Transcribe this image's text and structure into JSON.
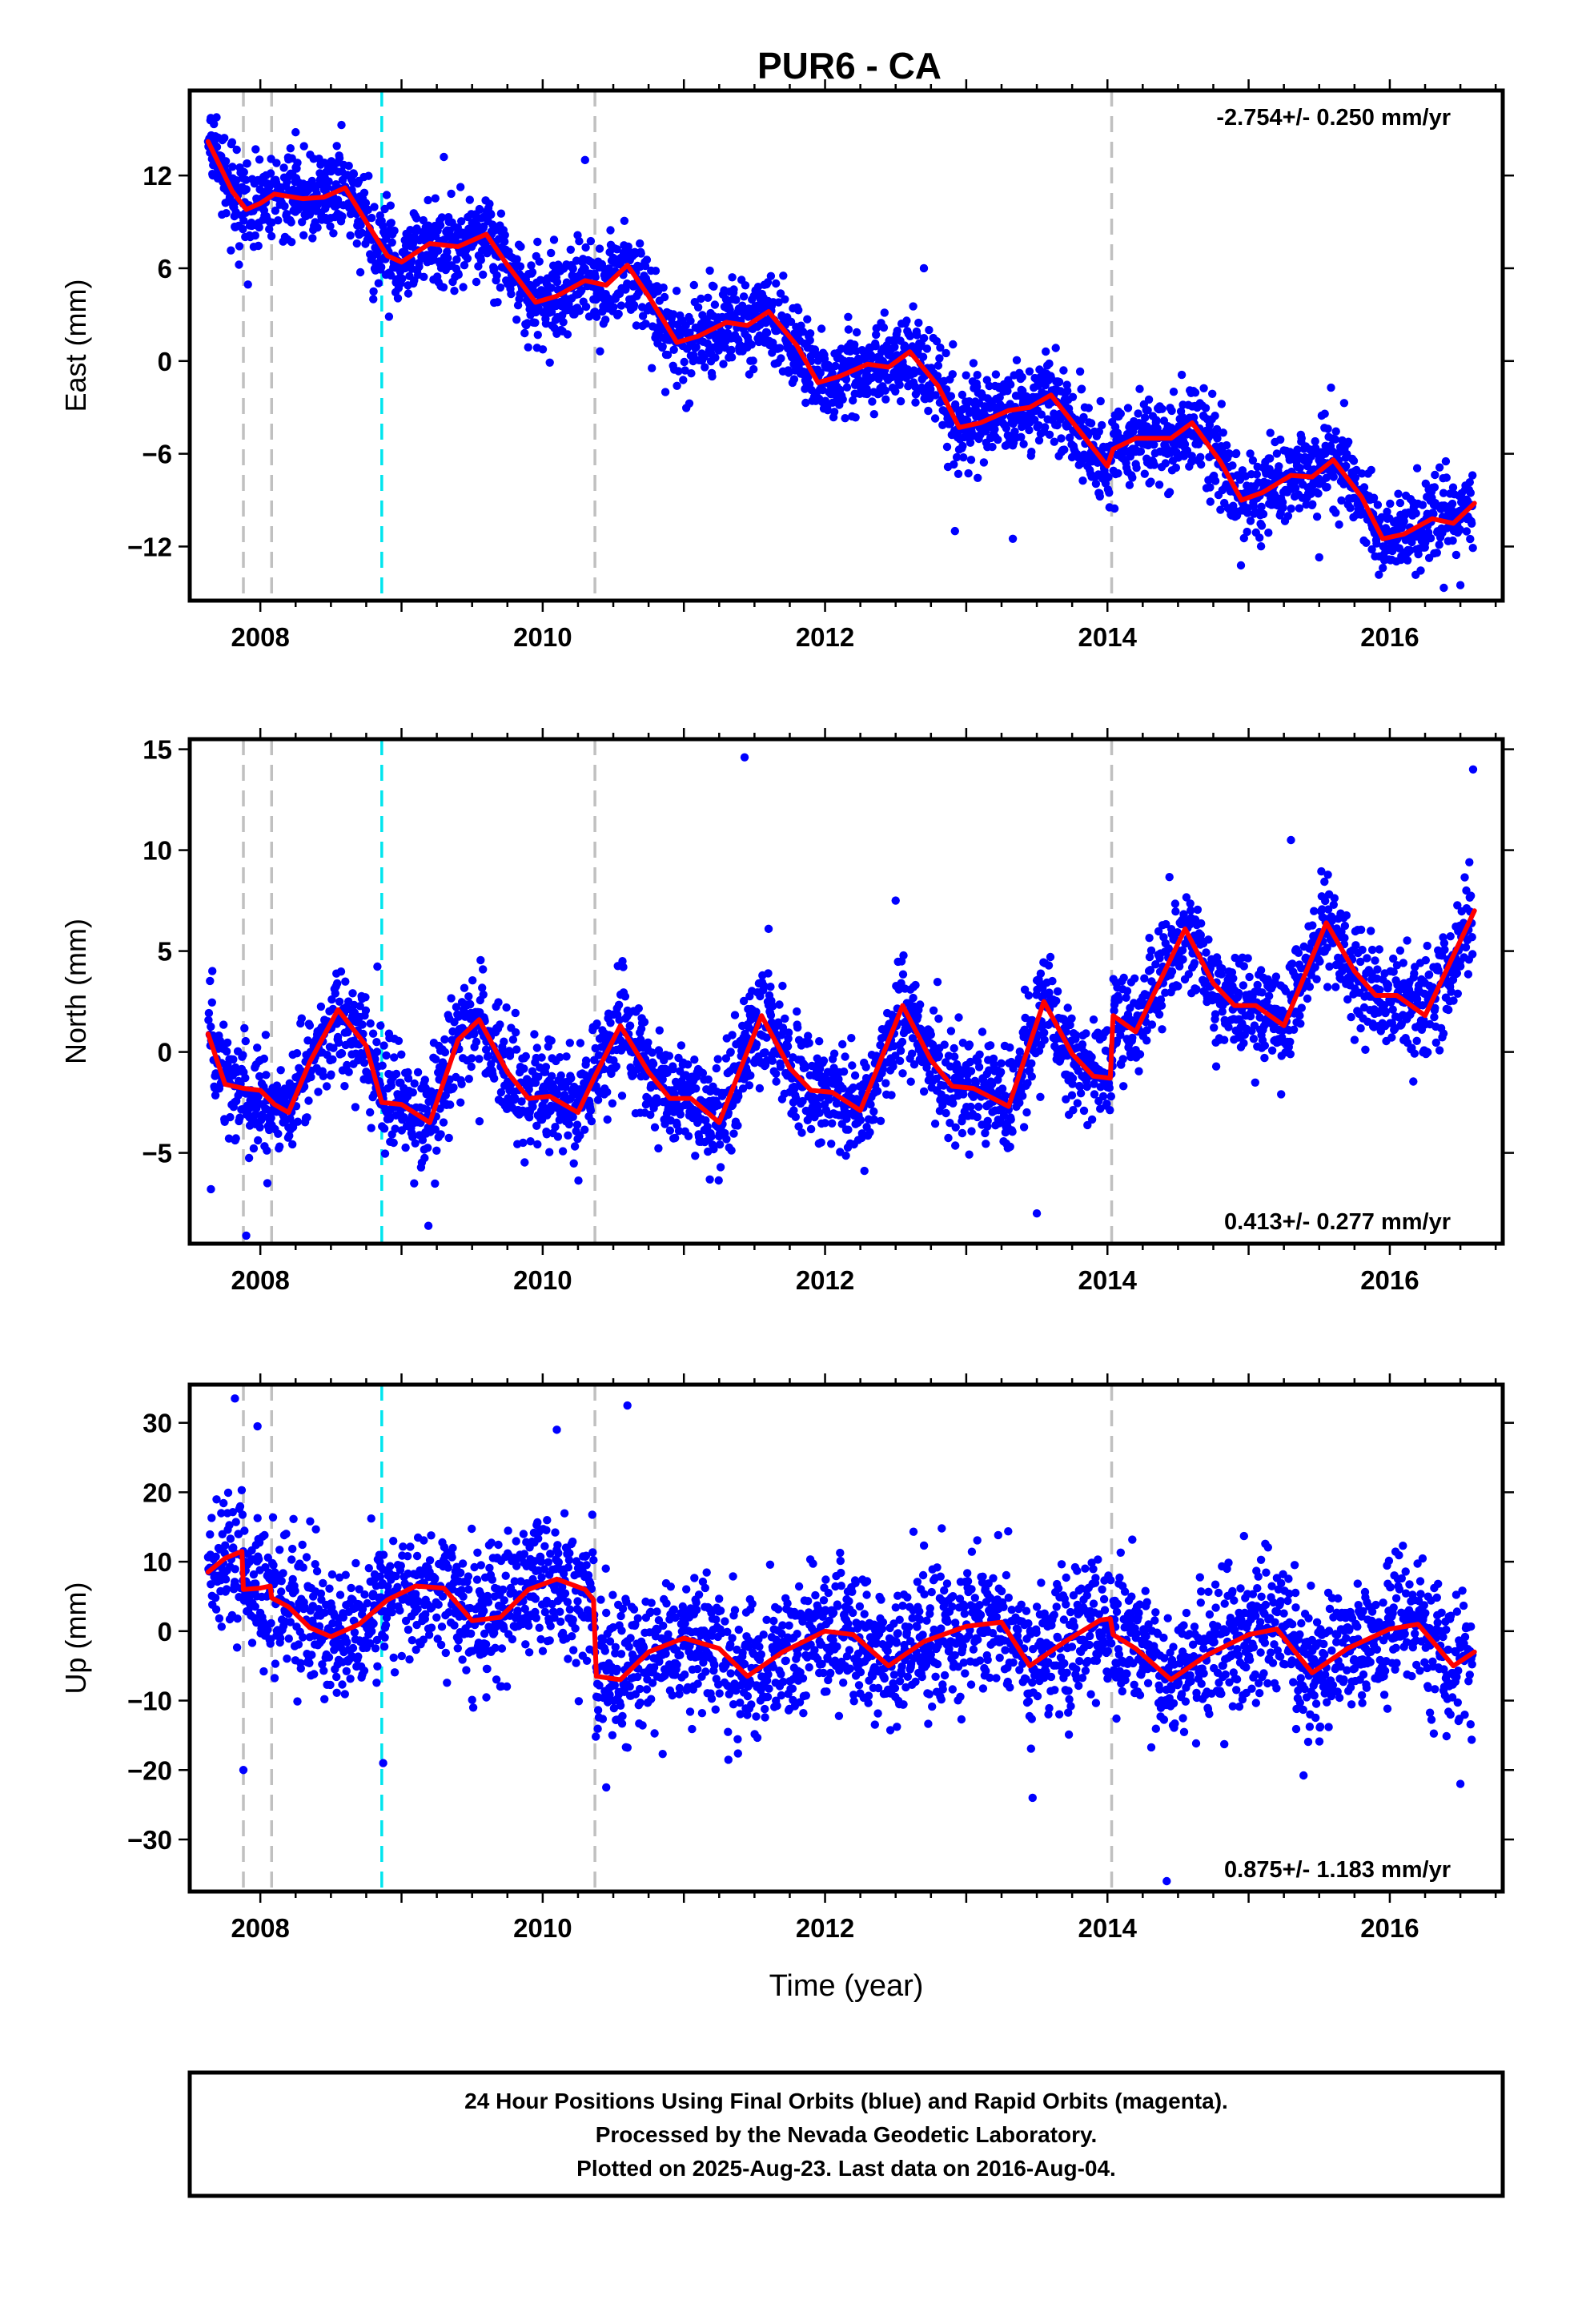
{
  "title": "PUR6 - CA",
  "footer": {
    "lines": [
      "24 Hour Positions Using Final Orbits (blue) and Rapid Orbits (magenta).",
      "Processed by the Nevada Geodetic Laboratory.",
      "Plotted on 2025-Aug-23. Last data on 2016-Aug-04."
    ]
  },
  "colors": {
    "points": "#0000ff",
    "model": "#ff0000",
    "event_line": "#c0c0c0",
    "equipment_line": "#00e5ee"
  },
  "chart_data": [
    {
      "type": "scatter",
      "ylabel": "East (mm)",
      "xlabel": "",
      "xlim": [
        2007.5,
        2016.8
      ],
      "ylim": [
        -15.5,
        17.5
      ],
      "x_ticks": [
        2008,
        2010,
        2012,
        2014,
        2016
      ],
      "y_ticks": [
        12,
        6,
        0,
        -6,
        -12
      ],
      "rate_text": "-2.754+/- 0.250 mm/yr",
      "rate_position": "top-right",
      "event_lines_gray": [
        2007.88,
        2008.08,
        2010.37,
        2014.03
      ],
      "event_lines_cyan": [
        2008.86
      ],
      "model": {
        "x": [
          2007.63,
          2007.8,
          2007.9,
          2008.0,
          2008.1,
          2008.3,
          2008.45,
          2008.6,
          2008.75,
          2008.9,
          2009.0,
          2009.2,
          2009.4,
          2009.6,
          2009.75,
          2009.95,
          2010.1,
          2010.3,
          2010.45,
          2010.6,
          2010.75,
          2010.95,
          2011.1,
          2011.3,
          2011.45,
          2011.6,
          2011.8,
          2011.95,
          2012.1,
          2012.3,
          2012.45,
          2012.6,
          2012.8,
          2012.95,
          2013.1,
          2013.3,
          2013.45,
          2013.6,
          2013.8,
          2014.0,
          2014.04,
          2014.2,
          2014.45,
          2014.6,
          2014.8,
          2014.95,
          2015.1,
          2015.3,
          2015.45,
          2015.6,
          2015.8,
          2015.95,
          2016.1,
          2016.3,
          2016.45,
          2016.6
        ],
        "y": [
          14.2,
          11.0,
          9.8,
          10.2,
          10.8,
          10.5,
          10.6,
          11.2,
          9.0,
          6.8,
          6.4,
          7.6,
          7.4,
          8.2,
          6.2,
          3.8,
          4.2,
          5.2,
          4.9,
          6.2,
          4.2,
          1.2,
          1.6,
          2.5,
          2.3,
          3.2,
          1.0,
          -1.4,
          -1.0,
          -0.2,
          -0.4,
          0.6,
          -1.6,
          -4.3,
          -4.0,
          -3.2,
          -3.0,
          -2.2,
          -4.5,
          -6.8,
          -5.7,
          -5.0,
          -5.0,
          -4.0,
          -6.5,
          -9.0,
          -8.5,
          -7.4,
          -7.5,
          -6.4,
          -8.8,
          -11.5,
          -11.2,
          -10.2,
          -10.5,
          -9.2
        ]
      },
      "points_summary": {
        "start": 2007.63,
        "end": 2016.59,
        "spacing_days": 1,
        "scatter_mm": 1.4,
        "outliers": [
          {
            "x": 2009.3,
            "y": 13.2
          },
          {
            "x": 2010.3,
            "y": 13.0
          },
          {
            "x": 2012.7,
            "y": 6.0
          },
          {
            "x": 2012.92,
            "y": -11.0
          },
          {
            "x": 2013.33,
            "y": -11.5
          },
          {
            "x": 2015.5,
            "y": -12.7
          },
          {
            "x": 2016.5,
            "y": -14.5
          },
          {
            "x": 2008.25,
            "y": 14.8
          },
          {
            "x": 2008.8,
            "y": 4.0
          }
        ]
      }
    },
    {
      "type": "scatter",
      "ylabel": "North (mm)",
      "xlabel": "",
      "xlim": [
        2007.5,
        2016.8
      ],
      "ylim": [
        -9.5,
        15.5
      ],
      "x_ticks": [
        2008,
        2010,
        2012,
        2014,
        2016
      ],
      "y_ticks": [
        15,
        10,
        5,
        0,
        -5
      ],
      "rate_text": "0.413+/- 0.277 mm/yr",
      "rate_position": "bottom-right",
      "event_lines_gray": [
        2007.88,
        2008.08,
        2010.37,
        2014.03
      ],
      "event_lines_cyan": [
        2008.86
      ],
      "model": {
        "x": [
          2007.63,
          2007.75,
          2007.88,
          2008.0,
          2008.1,
          2008.2,
          2008.35,
          2008.55,
          2008.75,
          2008.86,
          2009.0,
          2009.2,
          2009.4,
          2009.55,
          2009.75,
          2009.9,
          2010.05,
          2010.25,
          2010.37,
          2010.55,
          2010.75,
          2010.9,
          2011.05,
          2011.25,
          2011.55,
          2011.75,
          2011.9,
          2012.05,
          2012.25,
          2012.55,
          2012.75,
          2012.9,
          2013.05,
          2013.3,
          2013.55,
          2013.75,
          2013.9,
          2014.02,
          2014.04,
          2014.2,
          2014.55,
          2014.75,
          2014.9,
          2015.05,
          2015.25,
          2015.55,
          2015.75,
          2015.9,
          2016.05,
          2016.25,
          2016.6
        ],
        "y": [
          0.9,
          -1.6,
          -1.8,
          -1.9,
          -2.6,
          -3.0,
          -0.5,
          2.1,
          0.3,
          -2.5,
          -2.6,
          -3.5,
          0.6,
          1.6,
          -1.0,
          -2.3,
          -2.2,
          -3.0,
          -1.2,
          1.3,
          -1.0,
          -2.3,
          -2.3,
          -3.5,
          1.8,
          -0.8,
          -1.9,
          -2.0,
          -2.9,
          2.3,
          -0.4,
          -1.7,
          -1.8,
          -2.7,
          2.5,
          -0.1,
          -1.2,
          -1.3,
          1.8,
          1.0,
          6.1,
          3.4,
          2.3,
          2.3,
          1.3,
          6.4,
          4.0,
          2.8,
          2.8,
          1.8,
          7.0
        ]
      },
      "points_summary": {
        "start": 2007.63,
        "end": 2016.59,
        "spacing_days": 1,
        "scatter_mm": 1.3,
        "outliers": [
          {
            "x": 2011.43,
            "y": 14.6
          },
          {
            "x": 2016.59,
            "y": 14.0
          },
          {
            "x": 2007.9,
            "y": -9.1
          },
          {
            "x": 2013.5,
            "y": -8.0
          },
          {
            "x": 2011.6,
            "y": 6.1
          },
          {
            "x": 2012.5,
            "y": 7.5
          },
          {
            "x": 2015.3,
            "y": 10.5
          },
          {
            "x": 2007.65,
            "y": -6.8
          },
          {
            "x": 2008.05,
            "y": -6.5
          }
        ]
      }
    },
    {
      "type": "scatter",
      "ylabel": "Up (mm)",
      "xlabel": "Time (year)",
      "xlim": [
        2007.5,
        2016.8
      ],
      "ylim": [
        -37.5,
        35.5
      ],
      "x_ticks": [
        2008,
        2010,
        2012,
        2014,
        2016
      ],
      "y_ticks": [
        30,
        20,
        10,
        0,
        -10,
        -20,
        -30
      ],
      "rate_text": "0.875+/- 1.183 mm/yr",
      "rate_position": "bottom-right",
      "event_lines_gray": [
        2007.88,
        2008.08,
        2010.37,
        2014.03
      ],
      "event_lines_cyan": [
        2008.86
      ],
      "model": {
        "x": [
          2007.63,
          2007.75,
          2007.87,
          2007.88,
          2008.0,
          2008.07,
          2008.08,
          2008.2,
          2008.35,
          2008.5,
          2008.7,
          2008.9,
          2009.1,
          2009.3,
          2009.5,
          2009.7,
          2009.9,
          2010.1,
          2010.3,
          2010.36,
          2010.38,
          2010.55,
          2010.75,
          2011.0,
          2011.25,
          2011.45,
          2011.7,
          2012.0,
          2012.2,
          2012.45,
          2012.7,
          2013.0,
          2013.25,
          2013.45,
          2013.7,
          2013.95,
          2014.02,
          2014.04,
          2014.2,
          2014.45,
          2014.7,
          2015.0,
          2015.2,
          2015.45,
          2015.7,
          2016.0,
          2016.2,
          2016.45,
          2016.6
        ],
        "y": [
          8.5,
          10.5,
          11.5,
          6.0,
          6.2,
          6.5,
          4.8,
          3.5,
          0.5,
          -0.8,
          1.0,
          4.5,
          6.5,
          6.2,
          1.5,
          2.0,
          6.0,
          7.5,
          6.0,
          4.5,
          -6.5,
          -7.0,
          -3.0,
          -1.0,
          -2.5,
          -6.5,
          -3.0,
          0.0,
          -0.5,
          -5.0,
          -1.5,
          0.7,
          1.3,
          -5.0,
          -1.5,
          1.6,
          1.8,
          -0.5,
          -2.5,
          -7.0,
          -3.5,
          -0.5,
          0.3,
          -6.0,
          -2.5,
          0.3,
          1.0,
          -5.0,
          -3.0
        ]
      },
      "points_summary": {
        "start": 2007.63,
        "end": 2016.59,
        "spacing_days": 1,
        "scatter_mm": 5.0,
        "outliers": [
          {
            "x": 2007.82,
            "y": 33.5
          },
          {
            "x": 2007.98,
            "y": 29.5
          },
          {
            "x": 2010.1,
            "y": 29.0
          },
          {
            "x": 2010.6,
            "y": 32.5
          },
          {
            "x": 2014.42,
            "y": -36.0
          },
          {
            "x": 2008.87,
            "y": -19.0
          },
          {
            "x": 2007.88,
            "y": -20.0
          },
          {
            "x": 2013.47,
            "y": -24.0
          },
          {
            "x": 2010.45,
            "y": -22.5
          },
          {
            "x": 2016.5,
            "y": -22.0
          }
        ]
      }
    }
  ]
}
